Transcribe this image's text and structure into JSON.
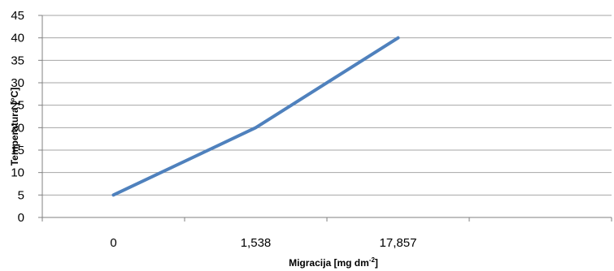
{
  "chart_data": {
    "type": "line",
    "categories": [
      "0",
      "1,538",
      "17,857"
    ],
    "series": [
      {
        "values": [
          5,
          20,
          40
        ],
        "color": "#4f81bd"
      }
    ],
    "xlabel": "Migracija [mg dm",
    "xlabel_sup": "-2",
    "xlabel_tail": "]",
    "ylabel": "Temperatura [°C]",
    "ylim": [
      0,
      45
    ],
    "yticks": [
      0,
      5,
      10,
      15,
      20,
      25,
      30,
      35,
      40,
      45
    ],
    "grid": true,
    "legend": "none",
    "gridline_color": "#a6a6a6"
  }
}
